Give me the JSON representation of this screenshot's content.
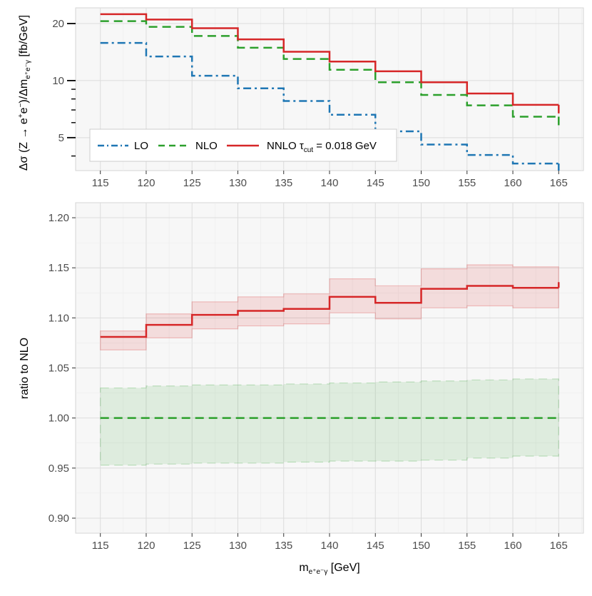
{
  "chart_data": [
    {
      "type": "line",
      "subtype": "step",
      "panel": "top",
      "y_scale": "log",
      "ylabel": "Δσ (Z → e⁺e⁻)/Δm e⁺e⁻γ [fb/GeV]",
      "ylabel_parts": {
        "main": "Δσ (Z → e",
        "sup1": "+",
        "mid1": "e",
        "sup2": "−",
        "mid2": ")/Δm",
        "sub": "e⁺e⁻γ",
        "tail": " [fb/GeV]"
      },
      "xlim": [
        112.3,
        167.7
      ],
      "ylim": [
        3.35,
        24.2
      ],
      "x_ticks": [
        "115",
        "120",
        "125",
        "130",
        "135",
        "140",
        "145",
        "150",
        "155",
        "160",
        "165"
      ],
      "y_ticks": [
        "5",
        "10",
        "20"
      ],
      "bin_edges": [
        115,
        120,
        125,
        130,
        135,
        140,
        145,
        150,
        155,
        160,
        165
      ],
      "series": [
        {
          "name": "LO",
          "style": "dashdot",
          "color": "#1f77b4",
          "values": [
            15.8,
            13.4,
            10.6,
            9.1,
            7.8,
            6.6,
            5.4,
            4.6,
            4.05,
            3.65
          ]
        },
        {
          "name": "NLO",
          "style": "dashed",
          "color": "#2ca02c",
          "values": [
            20.6,
            19.2,
            17.2,
            14.9,
            13.0,
            11.4,
            9.8,
            8.4,
            7.4,
            6.45
          ]
        },
        {
          "name": "NNLO",
          "style": "solid",
          "color": "#d62728",
          "values": [
            22.4,
            21.0,
            18.9,
            16.5,
            14.2,
            12.6,
            11.2,
            9.8,
            8.55,
            7.45
          ]
        }
      ],
      "legend": {
        "position": "bottom-left",
        "entries": [
          "LO",
          "NLO",
          "NNLO"
        ],
        "nnlo_label": {
          "main": "NNLO τ",
          "sub": "cut",
          "tail": " = 0.018 GeV"
        }
      }
    },
    {
      "type": "line",
      "subtype": "step",
      "panel": "bottom",
      "ylabel": "ratio to NLO",
      "xlabel_parts": {
        "main": "m",
        "sub": "e⁺e⁻γ",
        "tail": " [GeV]"
      },
      "xlim": [
        112.3,
        167.7
      ],
      "ylim": [
        0.885,
        1.215
      ],
      "x_ticks": [
        "115",
        "120",
        "125",
        "130",
        "135",
        "140",
        "145",
        "150",
        "155",
        "160",
        "165"
      ],
      "y_ticks": [
        "0.90",
        "0.95",
        "1.00",
        "1.05",
        "1.10",
        "1.15",
        "1.20"
      ],
      "bin_edges": [
        115,
        120,
        125,
        130,
        135,
        140,
        145,
        150,
        155,
        160,
        165
      ],
      "series": [
        {
          "name": "NLO",
          "style": "dashed",
          "color": "#2ca02c",
          "values": [
            1.0,
            1.0,
            1.0,
            1.0,
            1.0,
            1.0,
            1.0,
            1.0,
            1.0,
            1.0
          ],
          "band_low": [
            0.953,
            0.954,
            0.955,
            0.955,
            0.956,
            0.957,
            0.957,
            0.958,
            0.96,
            0.962
          ],
          "band_high": [
            1.03,
            1.032,
            1.033,
            1.033,
            1.034,
            1.035,
            1.036,
            1.037,
            1.038,
            1.039
          ]
        },
        {
          "name": "NNLO",
          "style": "solid",
          "color": "#d62728",
          "values": [
            1.081,
            1.093,
            1.103,
            1.107,
            1.109,
            1.121,
            1.115,
            1.129,
            1.132,
            1.13
          ],
          "band_low": [
            1.068,
            1.08,
            1.089,
            1.092,
            1.094,
            1.105,
            1.099,
            1.11,
            1.112,
            1.11
          ],
          "band_high": [
            1.087,
            1.104,
            1.116,
            1.121,
            1.124,
            1.139,
            1.132,
            1.149,
            1.153,
            1.151
          ]
        }
      ]
    }
  ]
}
